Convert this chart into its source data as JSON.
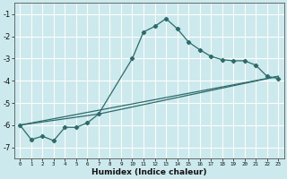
{
  "xlabel": "Humidex (Indice chaleur)",
  "bg_color": "#cce9ed",
  "line_color": "#2d6b6b",
  "grid_color": "#ffffff",
  "xlim": [
    -0.5,
    23.5
  ],
  "ylim": [
    -7.5,
    -0.5
  ],
  "yticks": [
    -7,
    -6,
    -5,
    -4,
    -3,
    -2,
    -1
  ],
  "xticks": [
    0,
    1,
    2,
    3,
    4,
    5,
    6,
    7,
    8,
    9,
    10,
    11,
    12,
    13,
    14,
    15,
    16,
    17,
    18,
    19,
    20,
    21,
    22,
    23
  ],
  "main_x": [
    0,
    1,
    2,
    3,
    4,
    5,
    6,
    7,
    10,
    11,
    12,
    13,
    14,
    15,
    16,
    17,
    18,
    19,
    20,
    21,
    22,
    23
  ],
  "main_y": [
    -6.0,
    -6.65,
    -6.5,
    -6.7,
    -6.1,
    -6.1,
    -5.9,
    -5.5,
    -3.0,
    -1.8,
    -1.55,
    -1.2,
    -1.65,
    -2.25,
    -2.6,
    -2.9,
    -3.05,
    -3.1,
    -3.1,
    -3.3,
    -3.8,
    -3.9
  ],
  "line1_x": [
    0,
    23
  ],
  "line1_y": [
    -6.0,
    -3.8
  ],
  "line2_x": [
    0,
    7,
    23
  ],
  "line2_y": [
    -6.0,
    -5.5,
    -3.8
  ]
}
